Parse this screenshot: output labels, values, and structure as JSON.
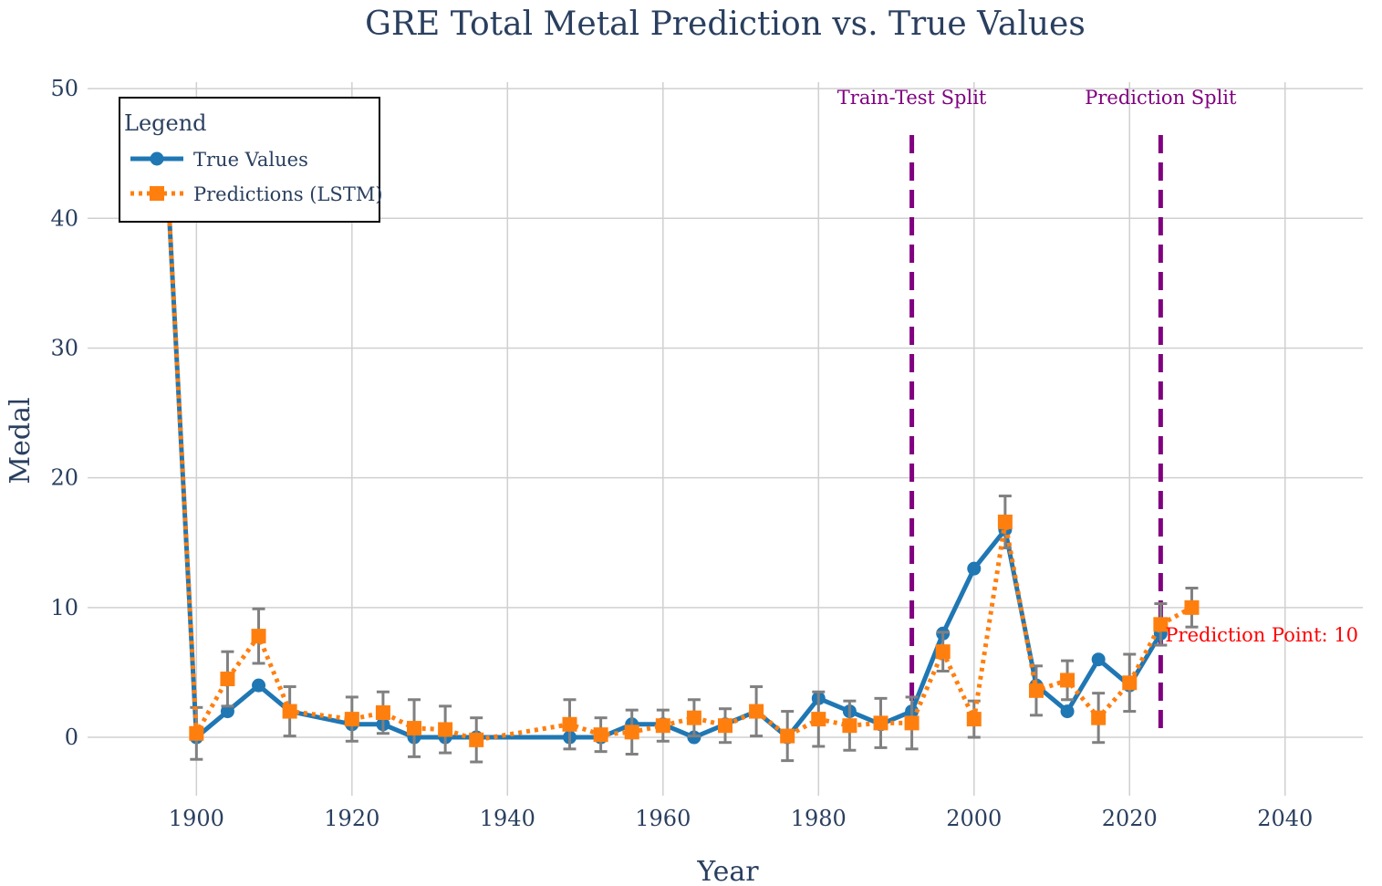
{
  "chart_data": {
    "type": "line",
    "title": "GRE Total Metal Prediction vs. True Values",
    "xlabel": "Year",
    "ylabel": "Medal",
    "xlim": [
      1886,
      2050
    ],
    "ylim": [
      -4.5,
      50.5
    ],
    "x_ticks": [
      1900,
      1920,
      1940,
      1960,
      1980,
      2000,
      2020,
      2040
    ],
    "y_ticks": [
      0,
      10,
      20,
      30,
      40,
      50
    ],
    "grid": true,
    "legend": {
      "title": "Legend",
      "position": "top-left",
      "entries": [
        "True Values",
        "Predictions (LSTM)"
      ]
    },
    "series": [
      {
        "name": "True Values",
        "style": "solid",
        "marker": "circle",
        "color": "#1f77b4",
        "x": [
          1896,
          1900,
          1904,
          1908,
          1912,
          1920,
          1924,
          1928,
          1932,
          1936,
          1948,
          1952,
          1956,
          1960,
          1964,
          1968,
          1972,
          1976,
          1980,
          1984,
          1988,
          1992,
          1996,
          2000,
          2004,
          2008,
          2012,
          2016,
          2020,
          2024
        ],
        "y": [
          46,
          0,
          2,
          4,
          2,
          1,
          1,
          0,
          0,
          0,
          0,
          0,
          1,
          1,
          0,
          1,
          2,
          0,
          3,
          2,
          1,
          2,
          8,
          13,
          16,
          4,
          2,
          6,
          4,
          8
        ]
      },
      {
        "name": "Predictions (LSTM)",
        "style": "dotted",
        "marker": "square",
        "color": "#ff7f0e",
        "error_bar_color": "#808080",
        "x": [
          1896,
          1900,
          1904,
          1908,
          1912,
          1920,
          1924,
          1928,
          1932,
          1936,
          1948,
          1952,
          1956,
          1960,
          1964,
          1968,
          1972,
          1976,
          1980,
          1984,
          1988,
          1992,
          1996,
          2000,
          2004,
          2008,
          2012,
          2016,
          2020,
          2024,
          2028
        ],
        "y": [
          46,
          0.3,
          4.5,
          7.8,
          2.0,
          1.4,
          1.9,
          0.7,
          0.6,
          -0.2,
          1.0,
          0.2,
          0.4,
          0.9,
          1.5,
          0.9,
          2.0,
          0.1,
          1.4,
          0.9,
          1.1,
          1.1,
          6.6,
          1.4,
          16.6,
          3.6,
          4.4,
          1.5,
          4.2,
          8.7,
          10.0
        ],
        "error": [
          0,
          2.0,
          2.1,
          2.1,
          1.9,
          1.7,
          1.6,
          2.2,
          1.8,
          1.7,
          1.9,
          1.3,
          1.7,
          1.2,
          1.4,
          1.3,
          1.9,
          1.9,
          2.1,
          1.9,
          1.9,
          2.0,
          1.5,
          1.4,
          2.0,
          1.9,
          1.5,
          1.9,
          2.2,
          1.6,
          1.5
        ]
      }
    ],
    "annotations": [
      {
        "text": "Train-Test Split",
        "x": 1992,
        "color": "#800080"
      },
      {
        "text": "Prediction Split",
        "x": 2024,
        "color": "#800080"
      },
      {
        "text": "Prediction Point: 10",
        "x": 2028,
        "y": 10,
        "color": "#ff0000"
      }
    ],
    "vlines": [
      {
        "x": 1992,
        "color": "#800080",
        "style": "dashed"
      },
      {
        "x": 2024,
        "color": "#800080",
        "style": "dashed"
      }
    ]
  }
}
